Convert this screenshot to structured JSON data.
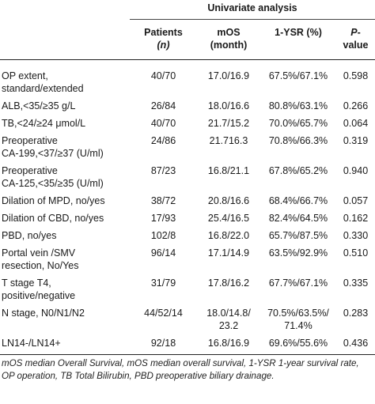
{
  "table": {
    "group_header": "Univariate analysis",
    "headers": {
      "patients": "Patients",
      "patients_sub": "(n)",
      "mos": "mOS",
      "mos_sub": "(month)",
      "ysr": "1-YSR (%)",
      "pvalue_p": "P",
      "pvalue_rest": "-value"
    },
    "rows": [
      {
        "label": [
          "OP extent,",
          "standard/extended"
        ],
        "patients": "40/70",
        "mos": "17.0/16.9",
        "ysr": "67.5%/67.1%",
        "p": "0.598"
      },
      {
        "label": [
          "ALB,<35/≥35 g/L"
        ],
        "patients": "26/84",
        "mos": "18.0/16.6",
        "ysr": "80.8%/63.1%",
        "p": "0.266"
      },
      {
        "label": [
          "TB,<24/≥24 μmol/L"
        ],
        "patients": "40/70",
        "mos": "21.7/15.2",
        "ysr": "70.0%/65.7%",
        "p": "0.064"
      },
      {
        "label": [
          "Preoperative",
          "CA-199,<37/≥37 (U/ml)"
        ],
        "patients": "24/86",
        "mos": "21.716.3",
        "ysr": "70.8%/66.3%",
        "p": "0.319"
      },
      {
        "label": [
          "Preoperative",
          "CA-125,<35/≥35 (U/ml)"
        ],
        "patients": "87/23",
        "mos": "16.8/21.1",
        "ysr": "67.8%/65.2%",
        "p": "0.940"
      },
      {
        "label": [
          "Dilation of MPD, no/yes"
        ],
        "patients": "38/72",
        "mos": "20.8/16.6",
        "ysr": "68.4%/66.7%",
        "p": "0.057"
      },
      {
        "label": [
          "Dilation of CBD, no/yes"
        ],
        "patients": "17/93",
        "mos": "25.4/16.5",
        "ysr": "82.4%/64.5%",
        "p": "0.162"
      },
      {
        "label": [
          "PBD, no/yes"
        ],
        "patients": "102/8",
        "mos": "16.8/22.0",
        "ysr": "65.7%/87.5%",
        "p": "0.330"
      },
      {
        "label": [
          "Portal vein /SMV",
          "resection, No/Yes"
        ],
        "patients": "96/14",
        "mos": "17.1/14.9",
        "ysr": "63.5%/92.9%",
        "p": "0.510"
      },
      {
        "label": [
          "T stage T4,",
          "positive/negative"
        ],
        "patients": "31/79",
        "mos": "17.8/16.2",
        "ysr": "67.7%/67.1%",
        "p": "0.335"
      },
      {
        "label": [
          "N stage, N0/N1/N2"
        ],
        "patients": "44/52/14",
        "mos": [
          "18.0/14.8/",
          "23.2"
        ],
        "ysr": [
          "70.5%/63.5%/",
          "71.4%"
        ],
        "p": "0.283"
      },
      {
        "label": [
          "LN14-/LN14+"
        ],
        "patients": "92/18",
        "mos": "16.8/16.9",
        "ysr": "69.6%/55.6%",
        "p": "0.436"
      }
    ]
  },
  "footnote": {
    "line1": "mOS median Overall Survival, mOS median overall survival, 1-YSR 1-year survival rate,",
    "line2": "OP operation, TB Total Bilirubin, PBD preoperative biliary drainage."
  }
}
